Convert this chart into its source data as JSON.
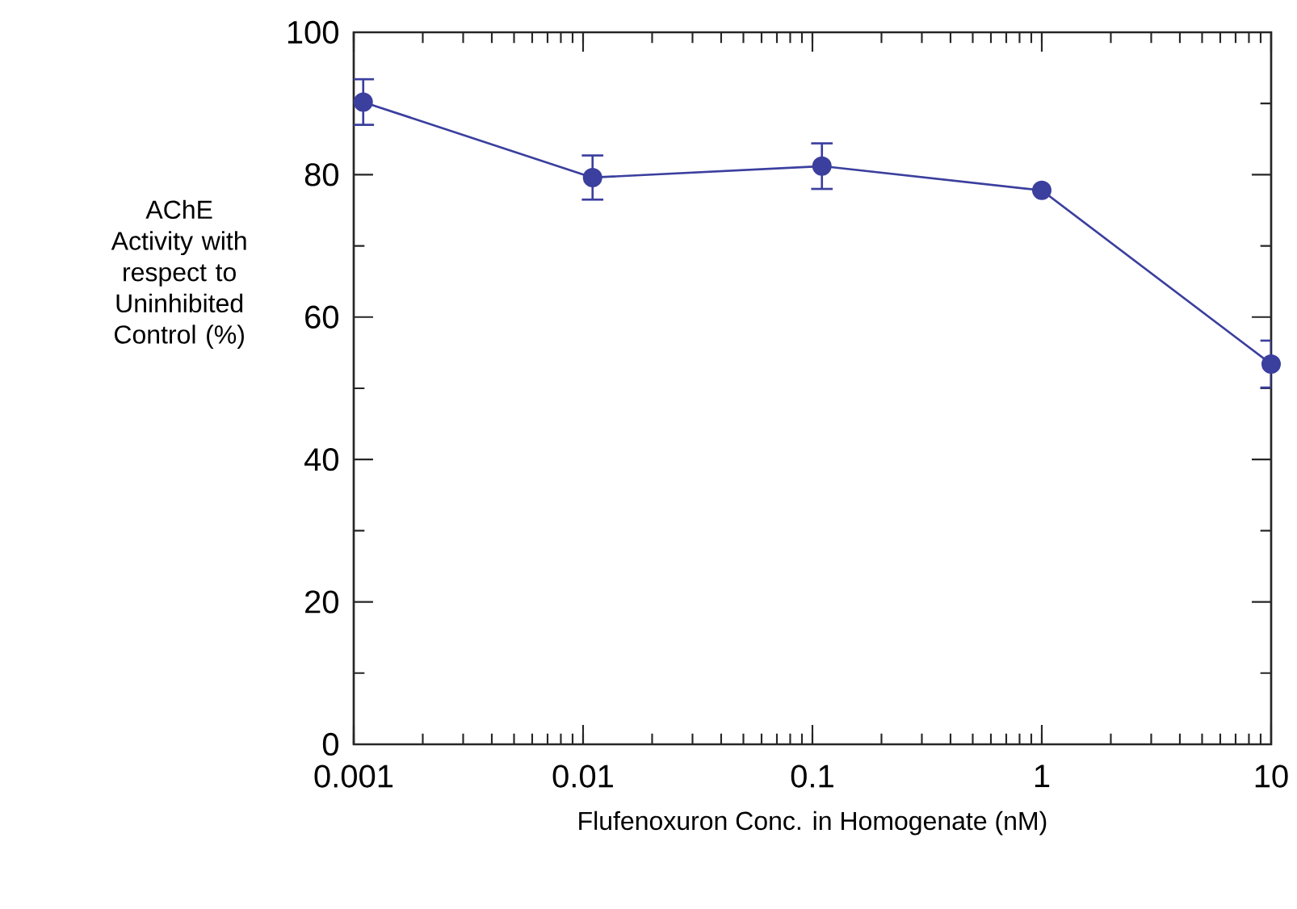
{
  "chart_data": {
    "type": "line",
    "xlabel": "Flufenoxuron Conc. in Homogenate (nM)",
    "ylabel": "AChE Activity with respect to Uninhibited Control (%)",
    "x": [
      0.0011,
      0.011,
      0.11,
      1,
      10
    ],
    "series": [
      {
        "color": "#3b3f9e",
        "values": [
          90.2,
          79.6,
          81.2,
          77.8,
          53.4
        ],
        "errors": [
          3.2,
          3.1,
          3.2,
          null,
          3.3
        ]
      }
    ],
    "log": "x",
    "marker": "circle",
    "line_style": "solid",
    "grid": false,
    "xlim": [
      0.001,
      10
    ],
    "xticks": [
      0.001,
      0.01,
      0.1,
      1,
      10
    ],
    "ylim": [
      0,
      100
    ],
    "yticks": [
      0,
      20,
      40,
      60,
      80,
      100
    ]
  }
}
